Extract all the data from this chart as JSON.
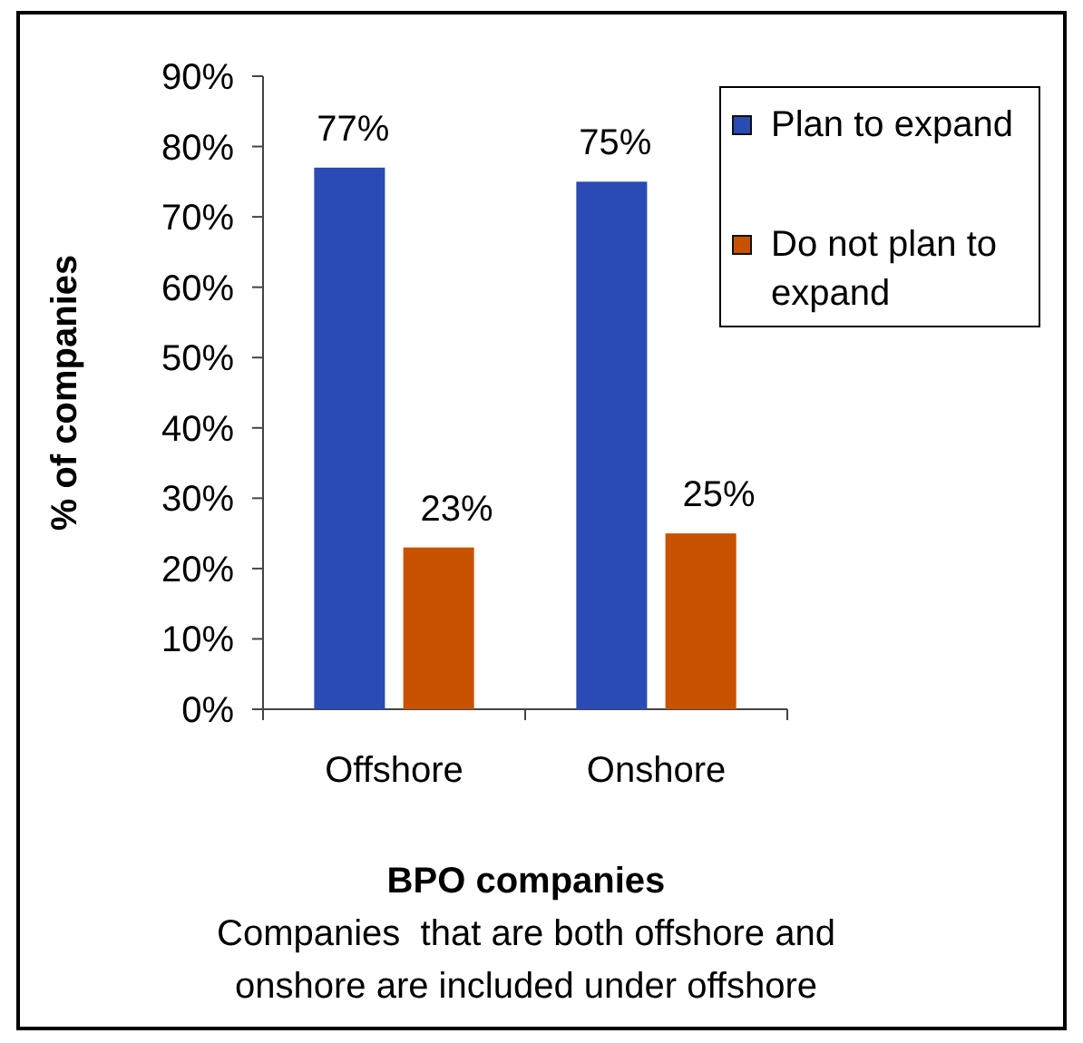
{
  "chart_data": {
    "type": "bar",
    "xlabel": "BPO companies",
    "ylabel": "% of companies",
    "annotations": [
      "Companies  that are both offshore and onshore are included under offshore"
    ],
    "categories": [
      "Offshore",
      "Onshore"
    ],
    "series": [
      {
        "name": "Plan to expand",
        "color": "#2a4ab4",
        "values": [
          77,
          75
        ],
        "value_labels": [
          "77%",
          "75%"
        ]
      },
      {
        "name": "Do not plan to expand",
        "color": "#c85200",
        "values": [
          23,
          25
        ],
        "value_labels": [
          "23%",
          "25%"
        ]
      }
    ],
    "ylim": [
      0,
      90
    ],
    "yticks": [
      {
        "value": 0,
        "label": "0%"
      },
      {
        "value": 10,
        "label": "10%"
      },
      {
        "value": 20,
        "label": "20%"
      },
      {
        "value": 30,
        "label": "30%"
      },
      {
        "value": 40,
        "label": "40%"
      },
      {
        "value": 50,
        "label": "50%"
      },
      {
        "value": 60,
        "label": "60%"
      },
      {
        "value": 70,
        "label": "70%"
      },
      {
        "value": 80,
        "label": "80%"
      },
      {
        "value": 90,
        "label": "90%"
      }
    ],
    "legend": "top right"
  }
}
